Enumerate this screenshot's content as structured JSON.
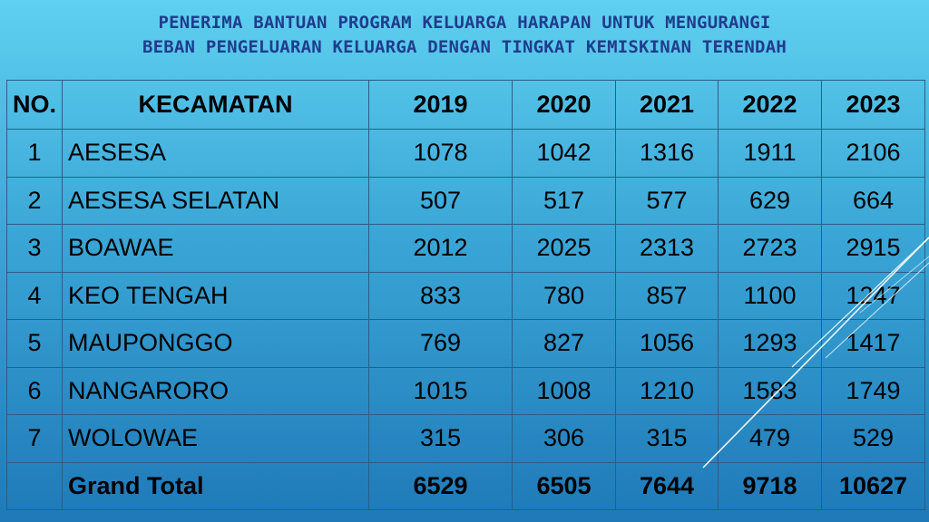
{
  "title": {
    "line1": "PENERIMA BANTUAN PROGRAM KELUARGA HARAPAN UNTUK MENGURANGI",
    "line2": "BEBAN PENGELUARAN KELUARGA DENGAN TINGKAT KEMISKINAN TERENDAH"
  },
  "table": {
    "headers": [
      "NO.",
      "KECAMATAN",
      "2019",
      "2020",
      "2021",
      "2022",
      "2023"
    ],
    "rows": [
      [
        "1",
        "AESESA",
        "1078",
        "1042",
        "1316",
        "1911",
        "2106"
      ],
      [
        "2",
        "AESESA SELATAN",
        "507",
        "517",
        "577",
        "629",
        "664"
      ],
      [
        "3",
        "BOAWAE",
        "2012",
        "2025",
        "2313",
        "2723",
        "2915"
      ],
      [
        "4",
        "KEO TENGAH",
        "833",
        "780",
        "857",
        "1100",
        "1247"
      ],
      [
        "5",
        "MAUPONGGO",
        "769",
        "827",
        "1056",
        "1293",
        "1417"
      ],
      [
        "6",
        "NANGARORO",
        "1015",
        "1008",
        "1210",
        "1583",
        "1749"
      ],
      [
        "7",
        "WOLOWAE",
        "315",
        "306",
        "315",
        "479",
        "529"
      ]
    ],
    "total": [
      "",
      "Grand Total",
      "6529",
      "6505",
      "7644",
      "9718",
      "10627"
    ]
  },
  "colors": {
    "title": "#1f3d8c",
    "background_top": "#5fd0f0",
    "background_bottom": "#1f79b8",
    "grid": "#2a5e86"
  }
}
